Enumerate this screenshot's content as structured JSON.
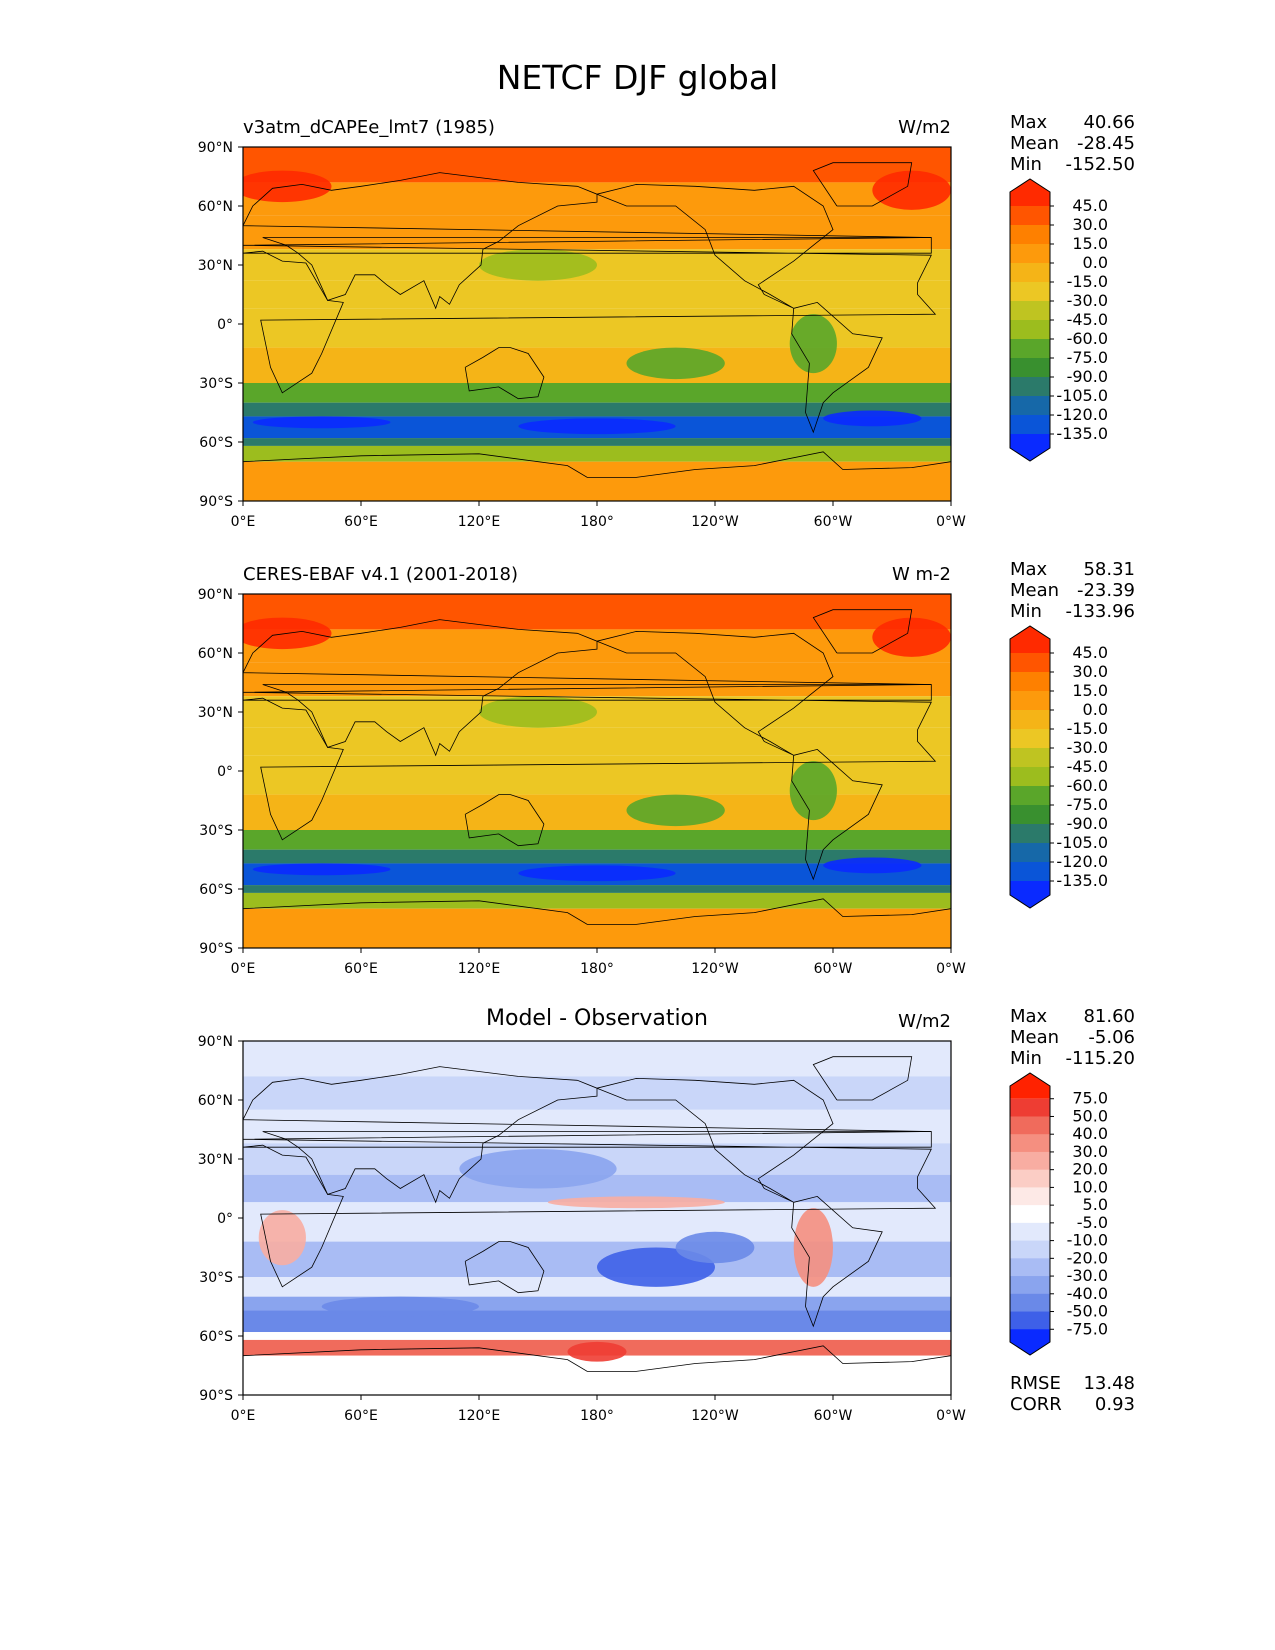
{
  "figure": {
    "title": "NETCF DJF global"
  },
  "chart_data": [
    {
      "type": "heatmap",
      "title": "v3atm_dCAPEe_lmt7 (1985)",
      "units": "W/m2",
      "x_ticks": [
        "0°E",
        "60°E",
        "120°E",
        "180°",
        "120°W",
        "60°W",
        "0°W"
      ],
      "y_ticks": [
        "90°N",
        "60°N",
        "30°N",
        "0°",
        "30°S",
        "60°S",
        "90°S"
      ],
      "xlim": [
        0,
        360
      ],
      "ylim": [
        -90,
        90
      ],
      "stats": {
        "max_label": "Max",
        "max": "40.66",
        "mean_label": "Mean",
        "mean": "-28.45",
        "min_label": "Min",
        "min": "-152.50"
      },
      "colorbar": {
        "labels": [
          "45.0",
          "30.0",
          "15.0",
          "0.0",
          "-15.0",
          "-30.0",
          "-45.0",
          "-60.0",
          "-75.0",
          "-90.0",
          "-105.0",
          "-120.0",
          "-135.0"
        ],
        "colors": [
          "#ff2a00",
          "#ff5500",
          "#fe8000",
          "#fd9a0c",
          "#f5b417",
          "#ecc724",
          "#bfc421",
          "#9cbd1e",
          "#5aa62a",
          "#39902f",
          "#2b7a6a",
          "#1668a8",
          "#0a55d8",
          "#0a2aff"
        ]
      }
    },
    {
      "type": "heatmap",
      "title": "CERES-EBAF v4.1 (2001-2018)",
      "units": "W m-2",
      "x_ticks": [
        "0°E",
        "60°E",
        "120°E",
        "180°",
        "120°W",
        "60°W",
        "0°W"
      ],
      "y_ticks": [
        "90°N",
        "60°N",
        "30°N",
        "0°",
        "30°S",
        "60°S",
        "90°S"
      ],
      "xlim": [
        0,
        360
      ],
      "ylim": [
        -90,
        90
      ],
      "stats": {
        "max_label": "Max",
        "max": "58.31",
        "mean_label": "Mean",
        "mean": "-23.39",
        "min_label": "Min",
        "min": "-133.96"
      },
      "colorbar": {
        "labels": [
          "45.0",
          "30.0",
          "15.0",
          "0.0",
          "-15.0",
          "-30.0",
          "-45.0",
          "-60.0",
          "-75.0",
          "-90.0",
          "-105.0",
          "-120.0",
          "-135.0"
        ],
        "colors": [
          "#ff2a00",
          "#ff5500",
          "#fe8000",
          "#fd9a0c",
          "#f5b417",
          "#ecc724",
          "#bfc421",
          "#9cbd1e",
          "#5aa62a",
          "#39902f",
          "#2b7a6a",
          "#1668a8",
          "#0a55d8",
          "#0a2aff"
        ]
      }
    },
    {
      "type": "heatmap",
      "title": "Model - Observation",
      "units": "W/m2",
      "x_ticks": [
        "0°E",
        "60°E",
        "120°E",
        "180°",
        "120°W",
        "60°W",
        "0°W"
      ],
      "y_ticks": [
        "90°N",
        "60°N",
        "30°N",
        "0°",
        "30°S",
        "60°S",
        "90°S"
      ],
      "xlim": [
        0,
        360
      ],
      "ylim": [
        -90,
        90
      ],
      "stats": {
        "max_label": "Max",
        "max": "81.60",
        "mean_label": "Mean",
        "mean": "-5.06",
        "min_label": "Min",
        "min": "-115.20"
      },
      "extra_stats": {
        "rmse_label": "RMSE",
        "rmse": "13.48",
        "corr_label": "CORR",
        "corr": "0.93"
      },
      "colorbar": {
        "labels": [
          "75.0",
          "50.0",
          "40.0",
          "30.0",
          "20.0",
          "10.0",
          "5.0",
          "-5.0",
          "-10.0",
          "-20.0",
          "-30.0",
          "-40.0",
          "-50.0",
          "-75.0"
        ],
        "colors": [
          "#ff2200",
          "#ee3d33",
          "#f06b5c",
          "#f58f80",
          "#f8ada2",
          "#fbcdc5",
          "#fde9e6",
          "#ffffff",
          "#e2e9fc",
          "#c9d6f9",
          "#a9bcf4",
          "#8aa4ee",
          "#6a89e8",
          "#3e60e8",
          "#0a2aff"
        ]
      }
    }
  ]
}
